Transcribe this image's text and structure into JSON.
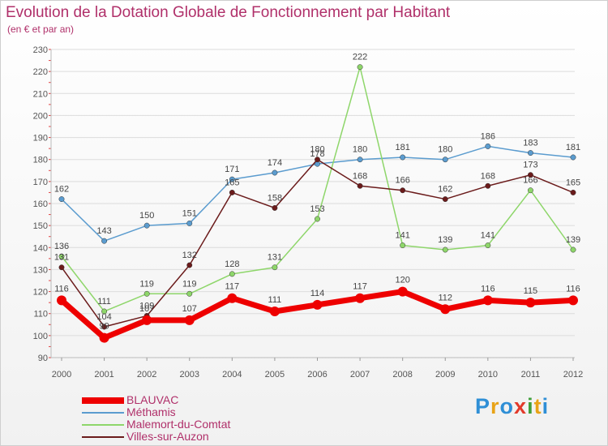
{
  "title": "Evolution de la Dotation Globale de Fonctionnement par Habitant",
  "subtitle": "(en € et par an)",
  "brand": {
    "parts": [
      "P",
      "r",
      "o",
      "x",
      "i",
      "t",
      "i"
    ],
    "colors": [
      "#2f8fd6",
      "#e8a317",
      "#2f8fd6",
      "#e23a2b",
      "#3f9f3a",
      "#e8a317",
      "#2f8fd6"
    ]
  },
  "chart_data": {
    "type": "line",
    "title": "Evolution de la Dotation Globale de Fonctionnement par Habitant",
    "subtitle": "(en € et par an)",
    "xlabel": "",
    "ylabel": "",
    "ylim": [
      90,
      230
    ],
    "yticks": [
      90,
      100,
      110,
      120,
      130,
      140,
      150,
      160,
      170,
      180,
      190,
      200,
      210,
      220,
      230
    ],
    "categories": [
      "2000",
      "2001",
      "2002",
      "2003",
      "2004",
      "2005",
      "2006",
      "2007",
      "2008",
      "2009",
      "2010",
      "2011",
      "2012"
    ],
    "legend_position": "bottom-left",
    "series": [
      {
        "name": "BLAUVAC",
        "color": "#ee0000",
        "width": "thick",
        "values": [
          116,
          99,
          107,
          107,
          117,
          111,
          114,
          117,
          120,
          112,
          116,
          115,
          116
        ]
      },
      {
        "name": "Méthamis",
        "color": "#5b9ccf",
        "width": "thin",
        "values": [
          162,
          143,
          150,
          151,
          171,
          174,
          178,
          180,
          181,
          180,
          186,
          183,
          181
        ]
      },
      {
        "name": "Malemort-du-Comtat",
        "color": "#8ed66a",
        "width": "thin",
        "values": [
          136,
          111,
          119,
          119,
          128,
          131,
          153,
          222,
          141,
          139,
          141,
          166,
          139
        ]
      },
      {
        "name": "Villes-sur-Auzon",
        "color": "#6b1b1b",
        "width": "thin",
        "values": [
          131,
          104,
          109,
          132,
          165,
          158,
          180,
          168,
          166,
          162,
          168,
          173,
          165
        ]
      }
    ]
  }
}
